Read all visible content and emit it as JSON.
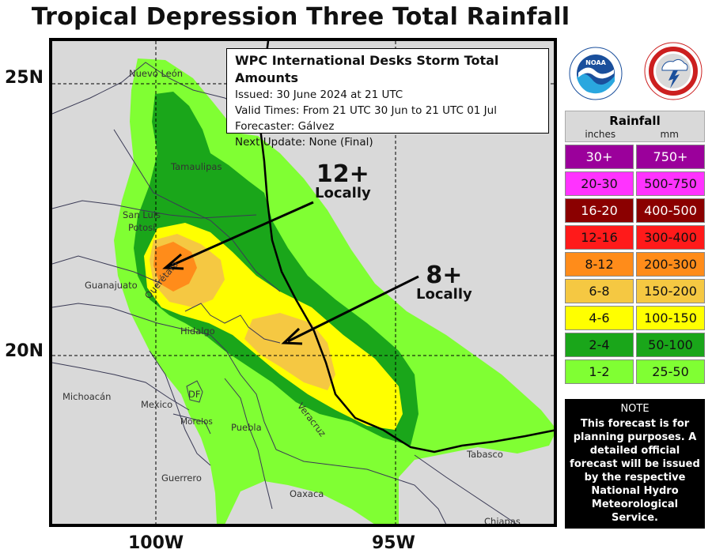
{
  "title": "Tropical Depression Three Total Rainfall",
  "axes": {
    "lat_labels": [
      "25N",
      "20N"
    ],
    "lon_labels": [
      "100W",
      "95W"
    ]
  },
  "infobox": {
    "title": "WPC International Desks Storm Total Amounts",
    "issued": "Issued:  30 June 2024 at 21 UTC",
    "valid": "Valid Times:  From 21 UTC 30 Jun to  21 UTC 01 Jul",
    "forecaster": "Forecaster: Gálvez",
    "next_update": "Next Update: None (Final)"
  },
  "places": {
    "nuevo_leon": "Nuevo León",
    "tamaulipas": "Tamaulipas",
    "san_luis_potosi_1": "San Luis",
    "san_luis_potosi_2": "Potosí",
    "guanajuato": "Guanajuato",
    "queretaro": "Querétaro",
    "hidalgo": "Hidalgo",
    "michoacan": "Michoacán",
    "mexico": "Mexico",
    "df": "DF",
    "morelos": "Morelos",
    "puebla": "Puebla",
    "veracruz": "Veracruz",
    "guerrero": "Guerrero",
    "oaxaca": "Oaxaca",
    "tabasco": "Tabasco",
    "chiapas": "Chiapas"
  },
  "annotations": [
    {
      "value": "12+",
      "label": "Locally"
    },
    {
      "value": "8+",
      "label": "Locally"
    }
  ],
  "logos": {
    "noaa": "NOAA",
    "nws": "NATIONAL WEATHER SERVICE"
  },
  "legend": {
    "title": "Rainfall",
    "unit_in": "inches",
    "unit_mm": "mm",
    "rows": [
      {
        "in": "30+",
        "mm": "750+",
        "color": "#9b009b",
        "text": "#ffffff"
      },
      {
        "in": "20-30",
        "mm": "500-750",
        "color": "#ff33ff",
        "text": "#111111"
      },
      {
        "in": "16-20",
        "mm": "400-500",
        "color": "#8b0000",
        "text": "#ffffff"
      },
      {
        "in": "12-16",
        "mm": "300-400",
        "color": "#ff1a1a",
        "text": "#111111"
      },
      {
        "in": "8-12",
        "mm": "200-300",
        "color": "#ff8c1a",
        "text": "#111111"
      },
      {
        "in": "6-8",
        "mm": "150-200",
        "color": "#f5c842",
        "text": "#111111"
      },
      {
        "in": "4-6",
        "mm": "100-150",
        "color": "#ffff00",
        "text": "#111111"
      },
      {
        "in": "2-4",
        "mm": "50-100",
        "color": "#1aa61a",
        "text": "#111111"
      },
      {
        "in": "1-2",
        "mm": "25-50",
        "color": "#80ff33",
        "text": "#111111"
      }
    ]
  },
  "note": {
    "title": "NOTE",
    "text": "This forecast is for planning purposes. A detailed official forecast will be issued by the respective National Hydro Meteorological Service."
  },
  "colors": {
    "map_background": "#d9d9d9",
    "shade_1_2": "#80ff33",
    "shade_2_4": "#1aa61a",
    "shade_4_6": "#ffff00",
    "shade_6_8": "#f5c842",
    "shade_8_12": "#ff8c1a"
  }
}
